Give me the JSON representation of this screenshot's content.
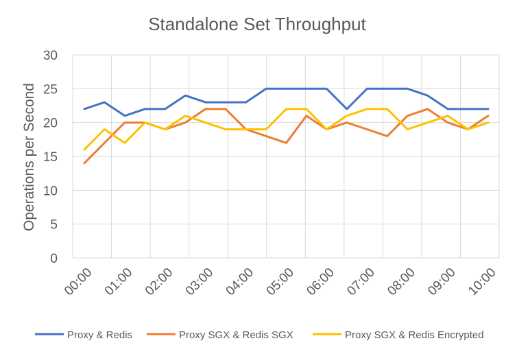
{
  "chart_data": {
    "type": "line",
    "title": "Standalone Set Throughput",
    "xlabel": "",
    "ylabel": "Operations per Second",
    "ylim": [
      0,
      30
    ],
    "yticks": [
      0,
      5,
      10,
      15,
      20,
      25,
      30
    ],
    "grid": true,
    "legend_position": "bottom",
    "x_tick_labels": [
      "00:00",
      "01:00",
      "02:00",
      "03:00",
      "04:00",
      "05:00",
      "06:00",
      "07:00",
      "08:00",
      "09:00",
      "10:00"
    ],
    "x_points": 21,
    "series": [
      {
        "name": "Proxy & Redis",
        "color": "#4472C4",
        "values": [
          22,
          23,
          21,
          22,
          22,
          24,
          23,
          23,
          23,
          25,
          25,
          25,
          25,
          22,
          25,
          25,
          25,
          24,
          22,
          22,
          22
        ]
      },
      {
        "name": "Proxy SGX & Redis SGX",
        "color": "#ED7D31",
        "values": [
          14,
          17,
          20,
          20,
          19,
          20,
          22,
          22,
          19,
          18,
          17,
          21,
          19,
          20,
          19,
          18,
          21,
          22,
          20,
          19,
          21
        ]
      },
      {
        "name": "Proxy SGX & Redis Encrypted",
        "color": "#FFC000",
        "values": [
          16,
          19,
          17,
          20,
          19,
          21,
          20,
          19,
          19,
          19,
          22,
          22,
          19,
          21,
          22,
          22,
          19,
          20,
          21,
          19,
          20
        ]
      }
    ]
  }
}
